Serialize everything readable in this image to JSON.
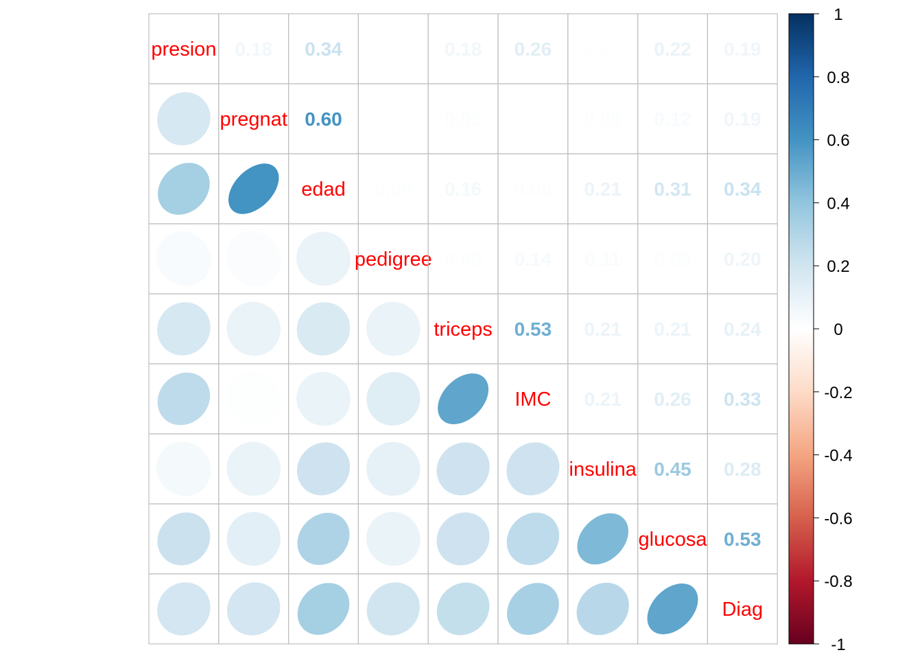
{
  "chart_data": {
    "type": "heatmap",
    "title": "",
    "variables": [
      "presion",
      "pregnat",
      "edad",
      "pedigree",
      "triceps",
      "IMC",
      "insulina",
      "glucosa",
      "Diag"
    ],
    "matrix": [
      [
        1.0,
        0.18,
        0.34,
        0.03,
        0.18,
        0.26,
        0.05,
        0.22,
        0.19
      ],
      [
        0.18,
        1.0,
        0.6,
        0.02,
        0.09,
        0.01,
        0.09,
        0.12,
        0.19
      ],
      [
        0.34,
        0.6,
        1.0,
        0.09,
        0.16,
        0.09,
        0.21,
        0.31,
        0.34
      ],
      [
        0.03,
        0.02,
        0.09,
        1.0,
        0.09,
        0.14,
        0.11,
        0.09,
        0.2
      ],
      [
        0.18,
        0.09,
        0.16,
        0.09,
        1.0,
        0.53,
        0.21,
        0.21,
        0.24
      ],
      [
        0.26,
        0.01,
        0.09,
        0.14,
        0.53,
        1.0,
        0.21,
        0.26,
        0.33
      ],
      [
        0.05,
        0.09,
        0.21,
        0.11,
        0.21,
        0.21,
        1.0,
        0.45,
        0.28
      ],
      [
        0.22,
        0.12,
        0.31,
        0.09,
        0.21,
        0.26,
        0.45,
        1.0,
        0.53
      ],
      [
        0.19,
        0.19,
        0.34,
        0.2,
        0.24,
        0.33,
        0.28,
        0.53,
        1.0
      ]
    ],
    "lower_triangle": "ellipse",
    "upper_triangle": "number",
    "diagonal": "label",
    "colorbar": {
      "range": [
        -1,
        1
      ],
      "ticks": [
        "1",
        "0.8",
        "0.6",
        "0.4",
        "0.2",
        "0",
        "-0.2",
        "-0.4",
        "-0.6",
        "-0.8",
        "-1"
      ],
      "tick_values": [
        1,
        0.8,
        0.6,
        0.4,
        0.2,
        0,
        -0.2,
        -0.4,
        -0.6,
        -0.8,
        -1
      ]
    },
    "colors": {
      "label": "#ff0000",
      "grid": "#bebebe",
      "palette": [
        "#67001F",
        "#B2182B",
        "#D6604D",
        "#F4A582",
        "#FDDBC7",
        "#FFFFFF",
        "#D1E5F0",
        "#92C5DE",
        "#4393C3",
        "#2166AC",
        "#053061"
      ]
    }
  }
}
